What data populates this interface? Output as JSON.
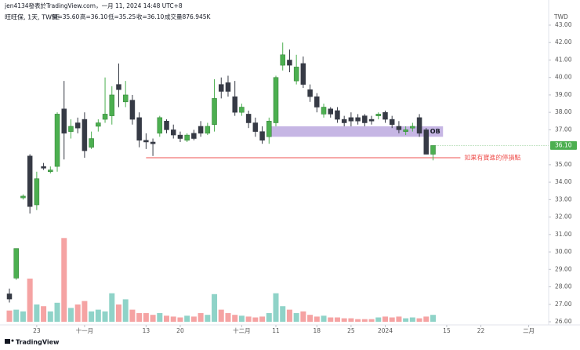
{
  "chart_data": {
    "type": "candlestick",
    "published": "jen4134發表於TradingView.com，一月 11, 2024 14:48 UTC+8",
    "symbol": "旺旺保, 1天, TWSE",
    "ohlcv_labels": [
      "開=35.60",
      "高=36.10",
      "低=35.25",
      "收=36.10",
      "成交量876.945K"
    ],
    "currency": "TWD",
    "brand": "TradingView",
    "last_price_label": "36.10",
    "up_color": "#4caf50",
    "down_color": "#363a45",
    "volume_up_color": "#8fd3c8",
    "volume_down_color": "#f5a3a3",
    "open": [
      27.6,
      28.5,
      33.1,
      35.5,
      32.7,
      34.9,
      34.6,
      34.9,
      38.2,
      36.9,
      37.4,
      37.6,
      36.0,
      37.2,
      37.6,
      37.8,
      39.6,
      38.6,
      38.7,
      37.7,
      36.4,
      36.3,
      36.8,
      37.5,
      37.0,
      36.7,
      36.4,
      36.8,
      37.2,
      36.8,
      37.3,
      39.6,
      39.7,
      38.9,
      38.0,
      37.9,
      37.4,
      36.9,
      36.6,
      37.4,
      40.7,
      41.0,
      39.8,
      40.8,
      39.3,
      38.9,
      37.9,
      38.2,
      38.1,
      37.6,
      37.7,
      37.7,
      37.8,
      37.6,
      37.8,
      38.0,
      37.6,
      37.2,
      36.9,
      37.1,
      37.7,
      37.0,
      35.6
    ],
    "high": [
      27.9,
      30.2,
      33.3,
      35.6,
      34.6,
      35.1,
      34.9,
      38.0,
      39.8,
      37.6,
      37.7,
      38.0,
      36.9,
      37.6,
      40.0,
      39.5,
      40.8,
      39.8,
      39.0,
      38.0,
      36.8,
      36.5,
      37.8,
      37.6,
      37.3,
      36.9,
      36.8,
      37.0,
      37.5,
      37.4,
      39.9,
      40.0,
      40.1,
      39.8,
      38.5,
      38.1,
      37.7,
      37.2,
      37.7,
      40.1,
      42.0,
      41.6,
      41.3,
      41.2,
      39.6,
      39.1,
      38.5,
      38.3,
      38.3,
      37.8,
      38.0,
      37.9,
      37.9,
      37.8,
      38.0,
      38.1,
      37.8,
      37.5,
      37.2,
      37.4,
      37.9,
      37.1,
      36.1
    ],
    "low": [
      27.1,
      28.4,
      33.0,
      32.2,
      32.4,
      34.7,
      34.5,
      34.6,
      35.3,
      36.5,
      36.8,
      35.4,
      35.9,
      36.9,
      37.4,
      37.3,
      38.3,
      38.3,
      37.3,
      36.0,
      35.9,
      35.5,
      36.6,
      36.8,
      36.5,
      36.3,
      36.3,
      36.4,
      36.6,
      36.7,
      36.9,
      38.8,
      38.9,
      37.8,
      37.8,
      37.1,
      36.6,
      36.2,
      36.2,
      37.2,
      40.4,
      40.3,
      39.6,
      39.4,
      38.6,
      38.0,
      37.7,
      37.7,
      37.4,
      37.2,
      37.2,
      37.3,
      37.2,
      37.3,
      37.6,
      37.4,
      37.1,
      36.8,
      36.7,
      36.9,
      36.6,
      35.6,
      35.25
    ],
    "close": [
      27.3,
      30.2,
      33.2,
      32.6,
      34.2,
      34.8,
      34.7,
      37.9,
      36.8,
      37.2,
      37.1,
      35.8,
      36.5,
      37.4,
      37.9,
      39.0,
      39.3,
      39.0,
      37.6,
      36.4,
      36.3,
      36.2,
      37.7,
      37.0,
      36.7,
      36.5,
      36.7,
      36.5,
      36.8,
      37.2,
      38.8,
      39.2,
      39.2,
      38.0,
      38.3,
      37.4,
      36.9,
      36.4,
      37.5,
      40.0,
      41.3,
      40.7,
      40.6,
      39.6,
      38.9,
      38.3,
      38.3,
      37.9,
      37.6,
      37.4,
      37.5,
      37.5,
      37.4,
      37.5,
      37.9,
      37.6,
      37.3,
      37.0,
      37.0,
      37.2,
      36.8,
      35.6,
      36.1
    ],
    "volume": [
      1430,
      1540,
      1320,
      5500,
      2200,
      1980,
      1320,
      2420,
      10670,
      1760,
      2200,
      2640,
      1320,
      1540,
      1320,
      3630,
      2200,
      2860,
      1540,
      1100,
      1100,
      880,
      1100,
      770,
      660,
      550,
      770,
      660,
      1100,
      880,
      3520,
      1540,
      1100,
      880,
      770,
      660,
      550,
      660,
      1100,
      3630,
      1980,
      1540,
      1100,
      1320,
      880,
      660,
      770,
      550,
      550,
      440,
      440,
      330,
      330,
      330,
      550,
      660,
      550,
      660,
      440,
      550,
      440,
      660,
      876.945
    ],
    "volume_ylim": [
      0,
      12000
    ],
    "xlim": [
      -0.5,
      78
    ],
    "xticks": [
      {
        "value": 4,
        "label": "23"
      },
      {
        "value": 11,
        "label": "十一月"
      },
      {
        "value": 20,
        "label": "13"
      },
      {
        "value": 25,
        "label": "20"
      },
      {
        "value": 34,
        "label": "十二月"
      },
      {
        "value": 39,
        "label": "11"
      },
      {
        "value": 45,
        "label": "18"
      },
      {
        "value": 50,
        "label": "25"
      },
      {
        "value": 55,
        "label": "2024"
      },
      {
        "value": 64,
        "label": "15"
      },
      {
        "value": 69,
        "label": "22"
      },
      {
        "value": 76,
        "label": "二月"
      }
    ],
    "ylim": [
      26,
      43
    ],
    "yticks": [
      {
        "value": 26,
        "label": "26.00"
      },
      {
        "value": 27,
        "label": "27.00"
      },
      {
        "value": 28,
        "label": "28.00"
      },
      {
        "value": 29,
        "label": "29.00"
      },
      {
        "value": 30,
        "label": "30.00"
      },
      {
        "value": 31,
        "label": "31.00"
      },
      {
        "value": 32,
        "label": "32.00"
      },
      {
        "value": 33,
        "label": "33.00"
      },
      {
        "value": 34,
        "label": "34.00"
      },
      {
        "value": 35,
        "label": "35.00"
      },
      {
        "value": 37,
        "label": "37.00"
      },
      {
        "value": 38,
        "label": "38.00"
      },
      {
        "value": 39,
        "label": "39.00"
      },
      {
        "value": 40,
        "label": "40.00"
      },
      {
        "value": 41,
        "label": "41.00"
      },
      {
        "value": 42,
        "label": "42.00"
      },
      {
        "value": 43,
        "label": "43.00"
      }
    ],
    "ob_zone": {
      "label": "OB",
      "low": 36.6,
      "high": 37.2,
      "start": 38,
      "end": 63
    },
    "stop_line": {
      "price": 35.4,
      "start": 20,
      "end": 66,
      "label": "如果有寶進的停損點",
      "color": "#ef5350"
    }
  }
}
